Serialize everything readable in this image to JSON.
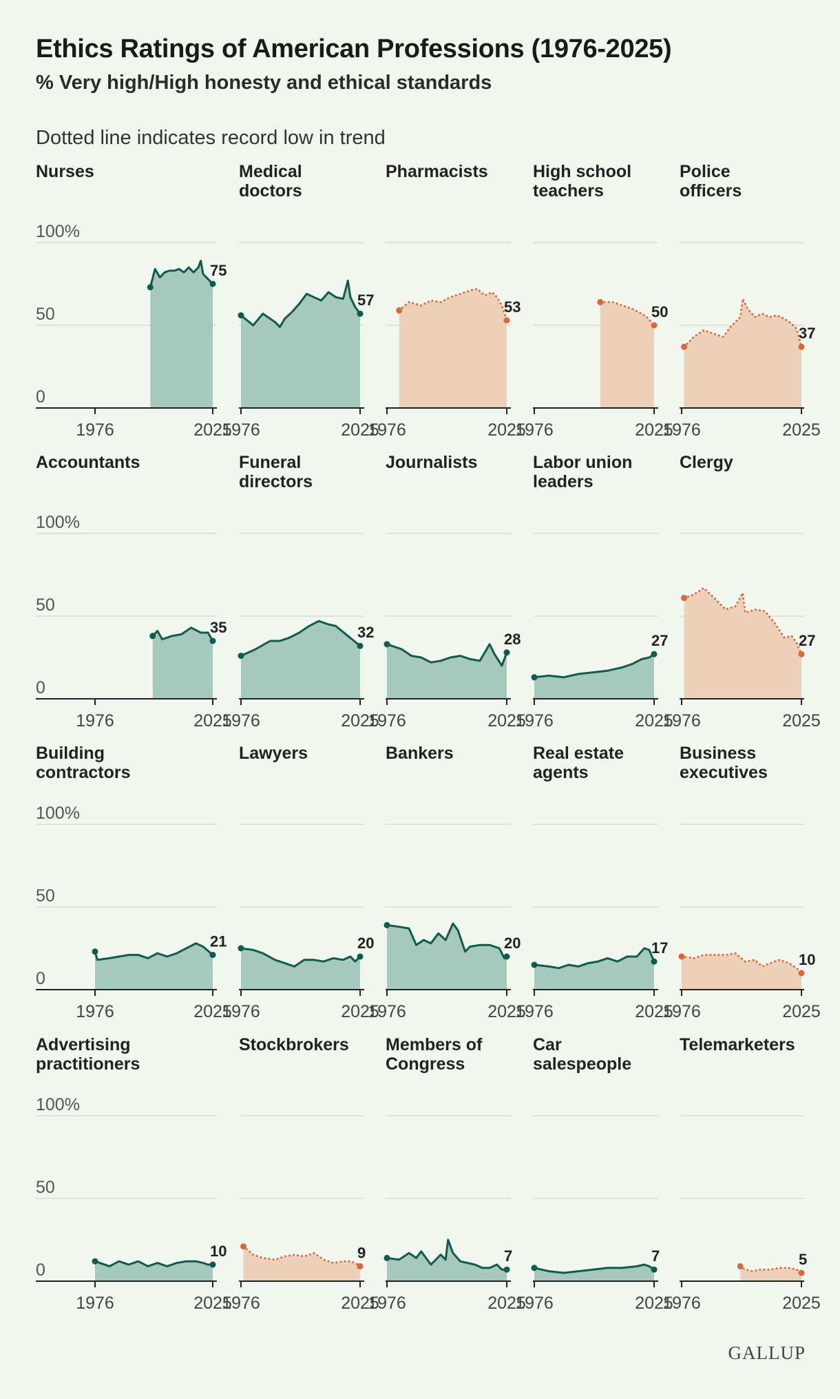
{
  "header": {
    "title": "Ethics Ratings of American Professions (1976-2025)",
    "subtitle": "% Very high/High honesty and ethical standards",
    "note": "Dotted line indicates record low in trend"
  },
  "logo": "GALLUP",
  "colors": {
    "normal_line": "#0e5c4b",
    "normal_fill": "#a7c9bd",
    "record_low_line": "#d9683a",
    "record_low_fill": "#ecd0b8",
    "background": "#f1f6ef"
  },
  "chart_data": [
    {
      "type": "area",
      "title": "Nurses",
      "ylim": [
        0,
        100
      ],
      "y_ticks": [
        "100%",
        "50",
        "0"
      ],
      "x_tick_labels": [
        "1976",
        "2025"
      ],
      "record_low": false,
      "end_label": "75",
      "series": [
        {
          "x": [
            1999,
            2001,
            2003,
            2005,
            2007,
            2009,
            2011,
            2013,
            2015,
            2017,
            2019,
            2020,
            2021,
            2023,
            2025
          ],
          "values": [
            73,
            84,
            79,
            82,
            83,
            83,
            84,
            82,
            85,
            82,
            85,
            89,
            81,
            78,
            75
          ]
        }
      ]
    },
    {
      "type": "area",
      "title": "Medical doctors",
      "ylim": [
        0,
        100
      ],
      "y_ticks": [
        "100%",
        "50",
        "0"
      ],
      "x_tick_labels": [
        "1976",
        "2025"
      ],
      "record_low": false,
      "end_label": "57",
      "series": [
        {
          "x": [
            1976,
            1981,
            1985,
            1990,
            1992,
            1994,
            1997,
            2000,
            2003,
            2006,
            2009,
            2012,
            2015,
            2018,
            2020,
            2021,
            2023,
            2025
          ],
          "values": [
            56,
            50,
            57,
            52,
            49,
            54,
            58,
            63,
            69,
            67,
            65,
            70,
            67,
            66,
            77,
            67,
            61,
            57
          ]
        }
      ]
    },
    {
      "type": "area",
      "title": "Pharmacists",
      "ylim": [
        0,
        100
      ],
      "y_ticks": [
        "100%",
        "50",
        "0"
      ],
      "x_tick_labels": [
        "1976",
        "2025"
      ],
      "record_low": true,
      "end_label": "53",
      "series": [
        {
          "x": [
            1981,
            1985,
            1990,
            1994,
            1998,
            2002,
            2006,
            2010,
            2013,
            2016,
            2019,
            2021,
            2023,
            2025
          ],
          "values": [
            59,
            64,
            62,
            65,
            64,
            67,
            69,
            71,
            72,
            68,
            70,
            67,
            62,
            53
          ]
        }
      ]
    },
    {
      "type": "area",
      "title": "High school teachers",
      "ylim": [
        0,
        100
      ],
      "y_ticks": [
        "100%",
        "50",
        "0"
      ],
      "x_tick_labels": [
        "1976",
        "2025"
      ],
      "record_low": true,
      "end_label": "50",
      "series": [
        {
          "x": [
            2003,
            2008,
            2012,
            2016,
            2020,
            2022,
            2025
          ],
          "values": [
            64,
            64,
            62,
            60,
            57,
            55,
            50
          ]
        }
      ]
    },
    {
      "type": "area",
      "title": "Police officers",
      "ylim": [
        0,
        100
      ],
      "y_ticks": [
        "100%",
        "50",
        "0"
      ],
      "x_tick_labels": [
        "1976",
        "2025"
      ],
      "record_low": true,
      "end_label": "37",
      "series": [
        {
          "x": [
            1977,
            1981,
            1985,
            1989,
            1993,
            1996,
            2000,
            2001,
            2003,
            2006,
            2009,
            2012,
            2015,
            2018,
            2021,
            2023,
            2025
          ],
          "values": [
            37,
            43,
            47,
            45,
            43,
            49,
            55,
            66,
            60,
            55,
            57,
            55,
            56,
            54,
            51,
            48,
            37
          ]
        }
      ]
    },
    {
      "type": "area",
      "title": "Accountants",
      "ylim": [
        0,
        100
      ],
      "y_ticks": [
        "100%",
        "50",
        "0"
      ],
      "x_tick_labels": [
        "1976",
        "2025"
      ],
      "record_low": false,
      "end_label": "35",
      "series": [
        {
          "x": [
            2000,
            2002,
            2004,
            2008,
            2012,
            2016,
            2020,
            2023,
            2025
          ],
          "values": [
            38,
            41,
            36,
            38,
            39,
            43,
            40,
            40,
            35
          ]
        }
      ]
    },
    {
      "type": "area",
      "title": "Funeral directors",
      "ylim": [
        0,
        100
      ],
      "y_ticks": [
        "100%",
        "50",
        "0"
      ],
      "x_tick_labels": [
        "1976",
        "2025"
      ],
      "record_low": false,
      "end_label": "32",
      "series": [
        {
          "x": [
            1976,
            1982,
            1988,
            1992,
            1996,
            2000,
            2004,
            2008,
            2012,
            2015,
            2020,
            2025
          ],
          "values": [
            26,
            30,
            35,
            35,
            37,
            40,
            44,
            47,
            45,
            44,
            38,
            32
          ]
        }
      ]
    },
    {
      "type": "area",
      "title": "Journalists",
      "ylim": [
        0,
        100
      ],
      "y_ticks": [
        "100%",
        "50",
        "0"
      ],
      "x_tick_labels": [
        "1976",
        "2025"
      ],
      "record_low": false,
      "end_label": "28",
      "series": [
        {
          "x": [
            1976,
            1982,
            1986,
            1990,
            1994,
            1998,
            2002,
            2006,
            2010,
            2014,
            2018,
            2020,
            2023,
            2025
          ],
          "values": [
            33,
            30,
            26,
            25,
            22,
            23,
            25,
            26,
            24,
            23,
            33,
            27,
            20,
            28
          ]
        }
      ]
    },
    {
      "type": "area",
      "title": "Labor union leaders",
      "ylim": [
        0,
        100
      ],
      "y_ticks": [
        "100%",
        "50",
        "0"
      ],
      "x_tick_labels": [
        "1976",
        "2025"
      ],
      "record_low": false,
      "end_label": "27",
      "series": [
        {
          "x": [
            1976,
            1982,
            1988,
            1994,
            2000,
            2006,
            2012,
            2016,
            2020,
            2023,
            2025
          ],
          "values": [
            13,
            14,
            13,
            15,
            16,
            17,
            19,
            21,
            24,
            25,
            27
          ]
        }
      ]
    },
    {
      "type": "area",
      "title": "Clergy",
      "ylim": [
        0,
        100
      ],
      "y_ticks": [
        "100%",
        "50",
        "0"
      ],
      "x_tick_labels": [
        "1976",
        "2025"
      ],
      "record_low": true,
      "end_label": "27",
      "series": [
        {
          "x": [
            1977,
            1981,
            1985,
            1990,
            1994,
            1998,
            2001,
            2002,
            2006,
            2010,
            2014,
            2018,
            2021,
            2023,
            2025
          ],
          "values": [
            61,
            63,
            67,
            60,
            54,
            56,
            64,
            52,
            54,
            53,
            46,
            37,
            38,
            34,
            27
          ]
        }
      ]
    },
    {
      "type": "area",
      "title": "Building contractors",
      "ylim": [
        0,
        100
      ],
      "y_ticks": [
        "100%",
        "50",
        "0"
      ],
      "x_tick_labels": [
        "1976",
        "2025"
      ],
      "record_low": false,
      "end_label": "21",
      "series": [
        {
          "x": [
            1976,
            1977,
            1982,
            1986,
            1990,
            1994,
            1998,
            2002,
            2006,
            2010,
            2014,
            2018,
            2021,
            2025
          ],
          "values": [
            23,
            18,
            19,
            20,
            21,
            21,
            19,
            22,
            20,
            22,
            25,
            28,
            26,
            21
          ]
        }
      ]
    },
    {
      "type": "area",
      "title": "Lawyers",
      "ylim": [
        0,
        100
      ],
      "y_ticks": [
        "100%",
        "50",
        "0"
      ],
      "x_tick_labels": [
        "1976",
        "2025"
      ],
      "record_low": false,
      "end_label": "20",
      "series": [
        {
          "x": [
            1976,
            1981,
            1985,
            1990,
            1994,
            1998,
            2002,
            2006,
            2010,
            2014,
            2018,
            2021,
            2023,
            2025
          ],
          "values": [
            25,
            24,
            22,
            18,
            16,
            14,
            18,
            18,
            17,
            19,
            18,
            20,
            17,
            20
          ]
        }
      ]
    },
    {
      "type": "area",
      "title": "Bankers",
      "ylim": [
        0,
        100
      ],
      "y_ticks": [
        "100%",
        "50",
        "0"
      ],
      "x_tick_labels": [
        "1976",
        "2025"
      ],
      "record_low": false,
      "end_label": "20",
      "series": [
        {
          "x": [
            1976,
            1981,
            1985,
            1988,
            1991,
            1994,
            1997,
            2000,
            2003,
            2005,
            2008,
            2010,
            2014,
            2018,
            2022,
            2024,
            2025
          ],
          "values": [
            39,
            38,
            37,
            27,
            30,
            28,
            34,
            30,
            40,
            36,
            23,
            26,
            27,
            27,
            25,
            19,
            20
          ]
        }
      ]
    },
    {
      "type": "area",
      "title": "Real estate agents",
      "ylim": [
        0,
        100
      ],
      "y_ticks": [
        "100%",
        "50",
        "0"
      ],
      "x_tick_labels": [
        "1976",
        "2025"
      ],
      "record_low": false,
      "end_label": "17",
      "series": [
        {
          "x": [
            1976,
            1982,
            1986,
            1990,
            1994,
            1998,
            2002,
            2006,
            2010,
            2014,
            2018,
            2021,
            2023,
            2025
          ],
          "values": [
            15,
            14,
            13,
            15,
            14,
            16,
            17,
            19,
            17,
            20,
            20,
            25,
            24,
            17
          ]
        }
      ]
    },
    {
      "type": "area",
      "title": "Business executives",
      "ylim": [
        0,
        100
      ],
      "y_ticks": [
        "100%",
        "50",
        "0"
      ],
      "x_tick_labels": [
        "1976",
        "2025"
      ],
      "record_low": true,
      "end_label": "10",
      "series": [
        {
          "x": [
            1976,
            1981,
            1985,
            1990,
            1994,
            1998,
            2002,
            2006,
            2009,
            2012,
            2016,
            2020,
            2023,
            2025
          ],
          "values": [
            20,
            19,
            21,
            21,
            21,
            22,
            17,
            18,
            14,
            16,
            18,
            16,
            13,
            10
          ]
        }
      ]
    },
    {
      "type": "area",
      "title": "Advertising practitioners",
      "ylim": [
        0,
        100
      ],
      "y_ticks": [
        "100%",
        "50",
        "0"
      ],
      "x_tick_labels": [
        "1976",
        "2025"
      ],
      "record_low": false,
      "end_label": "10",
      "series": [
        {
          "x": [
            1976,
            1978,
            1982,
            1986,
            1990,
            1994,
            1998,
            2002,
            2006,
            2010,
            2014,
            2018,
            2021,
            2023,
            2025
          ],
          "values": [
            12,
            11,
            9,
            12,
            10,
            12,
            9,
            11,
            9,
            11,
            12,
            12,
            11,
            10,
            10
          ]
        }
      ]
    },
    {
      "type": "area",
      "title": "Stockbrokers",
      "ylim": [
        0,
        100
      ],
      "y_ticks": [
        "100%",
        "50",
        "0"
      ],
      "x_tick_labels": [
        "1976",
        "2025"
      ],
      "record_low": true,
      "end_label": "9",
      "series": [
        {
          "x": [
            1977,
            1981,
            1985,
            1990,
            1994,
            1998,
            2002,
            2006,
            2010,
            2014,
            2018,
            2021,
            2023,
            2025
          ],
          "values": [
            21,
            16,
            14,
            13,
            15,
            16,
            15,
            17,
            13,
            11,
            12,
            12,
            11,
            9
          ]
        }
      ]
    },
    {
      "type": "area",
      "title": "Members of Congress",
      "ylim": [
        0,
        100
      ],
      "y_ticks": [
        "100%",
        "50",
        "0"
      ],
      "x_tick_labels": [
        "1976",
        "2025"
      ],
      "record_low": false,
      "end_label": "7",
      "series": [
        {
          "x": [
            1976,
            1981,
            1985,
            1988,
            1990,
            1992,
            1994,
            1998,
            2000,
            2001,
            2003,
            2006,
            2009,
            2012,
            2015,
            2018,
            2021,
            2023,
            2025
          ],
          "values": [
            14,
            13,
            17,
            14,
            18,
            14,
            10,
            16,
            13,
            25,
            17,
            12,
            11,
            10,
            8,
            8,
            10,
            7,
            7
          ]
        }
      ]
    },
    {
      "type": "area",
      "title": "Car salespeople",
      "ylim": [
        0,
        100
      ],
      "y_ticks": [
        "100%",
        "50",
        "0"
      ],
      "x_tick_labels": [
        "1976",
        "2025"
      ],
      "record_low": false,
      "end_label": "7",
      "series": [
        {
          "x": [
            1976,
            1982,
            1988,
            1994,
            2000,
            2006,
            2012,
            2018,
            2021,
            2023,
            2025
          ],
          "values": [
            8,
            6,
            5,
            6,
            7,
            8,
            8,
            9,
            10,
            9,
            7
          ]
        }
      ]
    },
    {
      "type": "area",
      "title": "Telemarketers",
      "ylim": [
        0,
        100
      ],
      "y_ticks": [
        "100%",
        "50",
        "0"
      ],
      "x_tick_labels": [
        "1976",
        "2025"
      ],
      "record_low": true,
      "end_label": "5",
      "series": [
        {
          "x": [
            2000,
            2002,
            2005,
            2008,
            2012,
            2016,
            2020,
            2023,
            2025
          ],
          "values": [
            9,
            7,
            6,
            7,
            7,
            8,
            8,
            7,
            5
          ]
        }
      ]
    }
  ]
}
